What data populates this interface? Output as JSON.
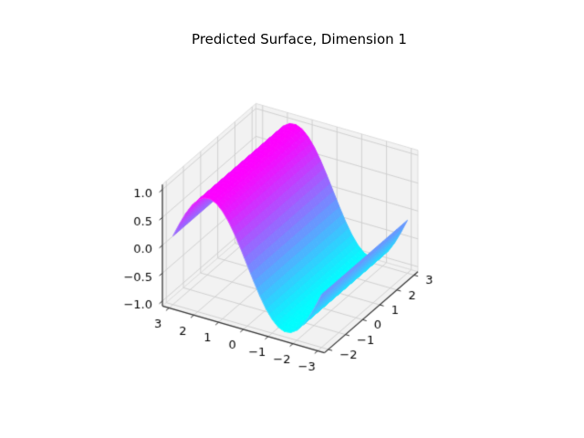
{
  "chart_data": {
    "type": "surface",
    "title": "Predicted Surface, Dimension 1",
    "xlabel": "",
    "ylabel": "",
    "zlabel": "",
    "x_range": [
      -3,
      3
    ],
    "y_range": [
      -2,
      3
    ],
    "z_range": [
      -1,
      1
    ],
    "x_axis_inverted": true,
    "x_tick_values": [
      3,
      2,
      1,
      0,
      -1,
      -2,
      -3
    ],
    "x_tick_labels": [
      "3",
      "2",
      "1",
      "0",
      "−1",
      "−2",
      "−3"
    ],
    "y_tick_values": [
      3,
      2,
      1,
      0,
      -1,
      -2
    ],
    "y_tick_labels": [
      "3",
      "2",
      "1",
      "0",
      "−1",
      "−2"
    ],
    "z_tick_values": [
      1.0,
      0.5,
      0.0,
      -0.5,
      -1.0
    ],
    "z_tick_labels": [
      "1.0",
      "0.5",
      "0.0",
      "−0.5",
      "−1.0"
    ],
    "view": {
      "elev": 30,
      "azim": -60
    },
    "grid": true,
    "colormap": {
      "name": "cool",
      "low_color": "#00ffff",
      "high_color": "#ff00ff"
    },
    "surface": {
      "formula": "z = sin(x), constant along y",
      "y_extent": [
        -2,
        3
      ],
      "x_samples": [
        -3,
        -2.75,
        -2.5,
        -2.25,
        -2,
        -1.75,
        -1.5,
        -1.25,
        -1,
        -0.75,
        -0.5,
        -0.25,
        0,
        0.25,
        0.5,
        0.75,
        1,
        1.25,
        1.5,
        1.75,
        2,
        2.25,
        2.5,
        2.75,
        3
      ],
      "z_values": [
        -0.141,
        -0.382,
        -0.599,
        -0.778,
        -0.909,
        -0.984,
        -0.997,
        -0.949,
        -0.841,
        -0.682,
        -0.479,
        -0.247,
        0,
        0.247,
        0.479,
        0.682,
        0.841,
        0.949,
        0.997,
        0.984,
        0.909,
        0.778,
        0.599,
        0.382,
        0.141
      ]
    },
    "style": {
      "background": "#ffffff",
      "pane_color": "#f2f2f2",
      "pane_edge_color": "#dcdcdc",
      "grid_color": "#cdcdcd",
      "axis_line_color": "#333333",
      "tick_color": "#333333",
      "label_color": "#000000",
      "surface_mesh_highlight": "rgba(255,255,255,0.22)"
    }
  }
}
